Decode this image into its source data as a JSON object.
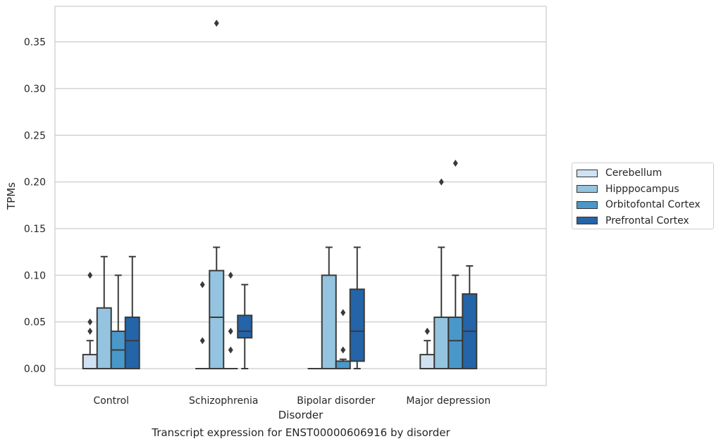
{
  "caption": "Transcript expression for ENST00000606916 by disorder",
  "chart_data": {
    "type": "box",
    "xlabel": "Disorder",
    "ylabel": "TPMs",
    "ylim": [
      -0.018,
      0.388
    ],
    "yticks": [
      0.0,
      0.05,
      0.1,
      0.15,
      0.2,
      0.25,
      0.3,
      0.35
    ],
    "ytick_labels": [
      "0.00",
      "0.05",
      "0.10",
      "0.15",
      "0.20",
      "0.25",
      "0.30",
      "0.35"
    ],
    "grid": "horizontal",
    "legend_position": "right",
    "categories": [
      "Control",
      "Schizophrenia",
      "Bipolar disorder",
      "Major depression"
    ],
    "series": [
      {
        "name": "Cerebellum",
        "color": "#d0e1f2",
        "boxes": [
          {
            "min": 0.0,
            "q1": 0.0,
            "median": 0.0,
            "q3": 0.015,
            "max": 0.03,
            "outliers": [
              0.04,
              0.05,
              0.1
            ]
          },
          {
            "min": 0.0,
            "q1": 0.0,
            "median": 0.0,
            "q3": 0.0,
            "max": 0.0,
            "outliers": [
              0.03,
              0.09
            ]
          },
          {
            "min": 0.0,
            "q1": 0.0,
            "median": 0.0,
            "q3": 0.0,
            "max": 0.0,
            "outliers": []
          },
          {
            "min": 0.0,
            "q1": 0.0,
            "median": 0.0,
            "q3": 0.015,
            "max": 0.03,
            "outliers": [
              0.04,
              0.04
            ]
          }
        ]
      },
      {
        "name": "Hipppocampus",
        "color": "#94c4df",
        "boxes": [
          {
            "min": 0.0,
            "q1": 0.0,
            "median": 0.0,
            "q3": 0.065,
            "max": 0.12,
            "outliers": []
          },
          {
            "min": 0.0,
            "q1": 0.0,
            "median": 0.055,
            "q3": 0.105,
            "max": 0.13,
            "outliers": [
              0.37
            ]
          },
          {
            "min": 0.0,
            "q1": 0.0,
            "median": 0.0,
            "q3": 0.1,
            "max": 0.13,
            "outliers": []
          },
          {
            "min": 0.0,
            "q1": 0.0,
            "median": 0.0,
            "q3": 0.055,
            "max": 0.13,
            "outliers": [
              0.2
            ]
          }
        ]
      },
      {
        "name": "Orbitofontal Cortex",
        "color": "#4a98c9",
        "boxes": [
          {
            "min": 0.0,
            "q1": 0.0,
            "median": 0.02,
            "q3": 0.04,
            "max": 0.1,
            "outliers": []
          },
          {
            "min": 0.0,
            "q1": 0.0,
            "median": 0.0,
            "q3": 0.0,
            "max": 0.0,
            "outliers": [
              0.02,
              0.04,
              0.1
            ]
          },
          {
            "min": 0.0,
            "q1": 0.0,
            "median": 0.0,
            "q3": 0.008,
            "max": 0.01,
            "outliers": [
              0.02,
              0.06
            ]
          },
          {
            "min": 0.0,
            "q1": 0.0,
            "median": 0.03,
            "q3": 0.055,
            "max": 0.1,
            "outliers": [
              0.22
            ]
          }
        ]
      },
      {
        "name": "Prefrontal Cortex",
        "color": "#2464a8",
        "boxes": [
          {
            "min": 0.0,
            "q1": 0.0,
            "median": 0.03,
            "q3": 0.055,
            "max": 0.12,
            "outliers": []
          },
          {
            "min": 0.0,
            "q1": 0.033,
            "median": 0.04,
            "q3": 0.057,
            "max": 0.09,
            "outliers": []
          },
          {
            "min": 0.0,
            "q1": 0.008,
            "median": 0.04,
            "q3": 0.085,
            "max": 0.13,
            "outliers": []
          },
          {
            "min": 0.0,
            "q1": 0.0,
            "median": 0.04,
            "q3": 0.08,
            "max": 0.11,
            "outliers": []
          }
        ]
      }
    ]
  }
}
